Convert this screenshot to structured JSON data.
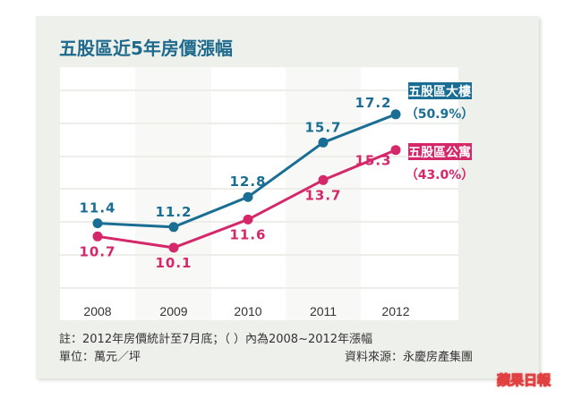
{
  "title": "五股區近5年房價漲幅",
  "chart_data": {
    "type": "line",
    "title": "五股區近5年房價漲幅",
    "categories": [
      "2008",
      "2009",
      "2010",
      "2011",
      "2012"
    ],
    "series": [
      {
        "name": "五股區大樓",
        "change": "（50.9%）",
        "color": "#1a6e93",
        "values": [
          11.4,
          11.2,
          12.8,
          15.7,
          17.2
        ],
        "labels": [
          "11.4",
          "11.2",
          "12.8",
          "15.7",
          "17.2"
        ]
      },
      {
        "name": "五股區公寓",
        "change": "（43.0%）",
        "color": "#d4286a",
        "values": [
          10.7,
          10.1,
          11.6,
          13.7,
          15.3
        ],
        "labels": [
          "10.7",
          "10.1",
          "11.6",
          "13.7",
          "15.3"
        ]
      }
    ],
    "grid": true,
    "legend": "right"
  },
  "notes": {
    "footnote": "註：2012年房價統計至7月底；（ ）內為2008~2012年漲幅",
    "unit": "單位：萬元／坪",
    "source": "資料來源：永慶房產集團"
  },
  "logo": "蘋果日報"
}
